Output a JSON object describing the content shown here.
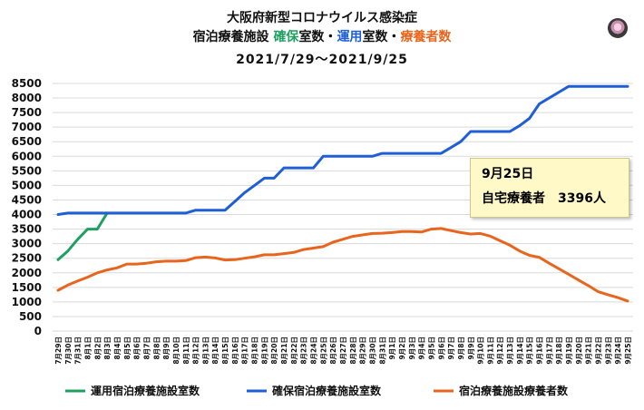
{
  "header": {
    "title_line1": "大阪府新型コロナウイルス感染症",
    "title_line2_prefix": "宿泊療養施設 ",
    "title_line2_green": "確保",
    "title_line2_mid1": "室数・",
    "title_line2_blue": "運用",
    "title_line2_mid2": "室数・",
    "title_line2_orange": "療養者数",
    "title_line3": "2021/7/29〜2021/9/25"
  },
  "note": {
    "date": "9月25日",
    "text": "自宅療養者　3396人"
  },
  "chart_data": {
    "type": "line",
    "title": "",
    "xlabel": "",
    "ylabel": "",
    "ylim": [
      0,
      8500
    ],
    "y_ticks": [
      0,
      500,
      1000,
      1500,
      2000,
      2500,
      3000,
      3500,
      4000,
      4500,
      5000,
      5500,
      6000,
      6500,
      7000,
      7500,
      8000,
      8500
    ],
    "grid": true,
    "legend_position": "bottom",
    "categories": [
      "7月29日",
      "7月30日",
      "7月31日",
      "8月1日",
      "8月2日",
      "8月3日",
      "8月4日",
      "8月5日",
      "8月6日",
      "8月7日",
      "8月8日",
      "8月9日",
      "8月10日",
      "8月11日",
      "8月12日",
      "8月13日",
      "8月14日",
      "8月15日",
      "8月16日",
      "8月17日",
      "8月18日",
      "8月19日",
      "8月20日",
      "8月21日",
      "8月22日",
      "8月23日",
      "8月24日",
      "8月25日",
      "8月26日",
      "8月27日",
      "8月28日",
      "8月29日",
      "8月30日",
      "8月31日",
      "9月1日",
      "9月2日",
      "9月3日",
      "9月4日",
      "9月5日",
      "9月6日",
      "9月7日",
      "9月8日",
      "9月9日",
      "9月10日",
      "9月11日",
      "9月12日",
      "9月13日",
      "9月14日",
      "9月15日",
      "9月16日",
      "9月17日",
      "9月18日",
      "9月19日",
      "9月20日",
      "9月21日",
      "9月22日",
      "9月23日",
      "9月24日",
      "9月25日"
    ],
    "series": [
      {
        "name": "運用宿泊療養施設室数",
        "color": "#1fa060",
        "values": [
          2450,
          2750,
          3150,
          3500,
          3500,
          4050,
          null,
          null,
          null,
          null,
          null,
          null,
          null,
          null,
          null,
          null,
          null,
          null,
          null,
          null,
          null,
          null,
          null,
          null,
          null,
          null,
          null,
          null,
          null,
          null,
          null,
          null,
          null,
          null,
          null,
          null,
          null,
          null,
          null,
          null,
          null,
          null,
          null,
          null,
          null,
          null,
          null,
          null,
          null,
          null,
          null,
          null,
          null,
          null,
          null,
          null,
          null,
          null,
          null
        ]
      },
      {
        "name": "確保宿泊療養施設室数",
        "color": "#1e5fd6",
        "values": [
          4000,
          4050,
          4050,
          4050,
          4050,
          4050,
          4050,
          4050,
          4050,
          4050,
          4050,
          4050,
          4050,
          4050,
          4150,
          4150,
          4150,
          4150,
          4450,
          4750,
          5000,
          5250,
          5250,
          5600,
          5600,
          5600,
          5600,
          6000,
          6000,
          6000,
          6000,
          6000,
          6000,
          6100,
          6100,
          6100,
          6100,
          6100,
          6100,
          6100,
          6300,
          6500,
          6850,
          6850,
          6850,
          6850,
          6850,
          7050,
          7300,
          7800,
          8000,
          8200,
          8400,
          8400,
          8400,
          8400,
          8400,
          8400,
          8400
        ]
      },
      {
        "name": "宿泊療養施設療養者数",
        "color": "#e8651d",
        "values": [
          1400,
          1580,
          1720,
          1850,
          2000,
          2100,
          2170,
          2300,
          2300,
          2330,
          2380,
          2400,
          2400,
          2420,
          2520,
          2540,
          2510,
          2440,
          2450,
          2500,
          2550,
          2620,
          2620,
          2660,
          2700,
          2800,
          2850,
          2900,
          3050,
          3150,
          3250,
          3300,
          3350,
          3360,
          3380,
          3420,
          3420,
          3400,
          3500,
          3520,
          3450,
          3380,
          3330,
          3350,
          3260,
          3100,
          2950,
          2750,
          2600,
          2530,
          2330,
          2140,
          1950,
          1750,
          1560,
          1350,
          1250,
          1150,
          1030
        ]
      }
    ]
  }
}
